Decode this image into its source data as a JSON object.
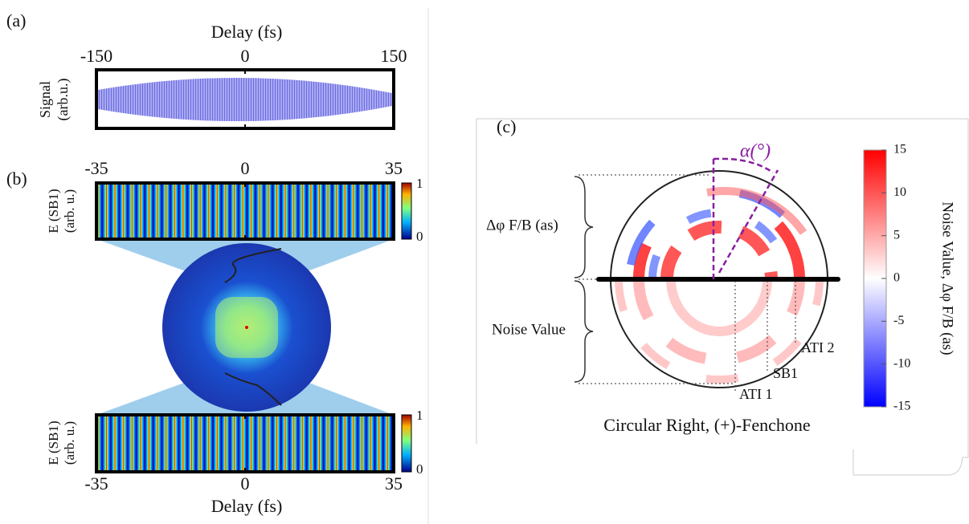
{
  "panel_a": {
    "label": "(a)",
    "xlabel": "Delay (fs)",
    "ylabel": [
      "Signal",
      "(arb.u.)"
    ],
    "xticks": [
      -150,
      0,
      150
    ]
  },
  "panel_b": {
    "label": "(b)",
    "top": {
      "xticks": [
        -35,
        0,
        35
      ],
      "ylabel": [
        "E (SB1)",
        "(arb. u.)"
      ],
      "cbar_ticks": [
        1,
        0
      ]
    },
    "bottom": {
      "xticks": [
        -35,
        0,
        35
      ],
      "ylabel": [
        "E (SB1)",
        "(arb. u.)"
      ],
      "cbar_ticks": [
        1,
        0
      ],
      "xlabel": "Delay (fs)"
    }
  },
  "panel_c": {
    "label": "(c)",
    "angle_label": "α(°)",
    "brace_labels": [
      "Δφ F/B (as)",
      "Noise Value"
    ],
    "ring_labels": [
      "ATI 2",
      "SB1",
      "ATI 1"
    ],
    "caption": "Circular Right, (+)-Fenchone",
    "colorbar": {
      "label": "Noise Value,  Δφ F/B (as)",
      "ticks": [
        15,
        10,
        5,
        0,
        -5,
        -10,
        -15
      ]
    }
  }
}
